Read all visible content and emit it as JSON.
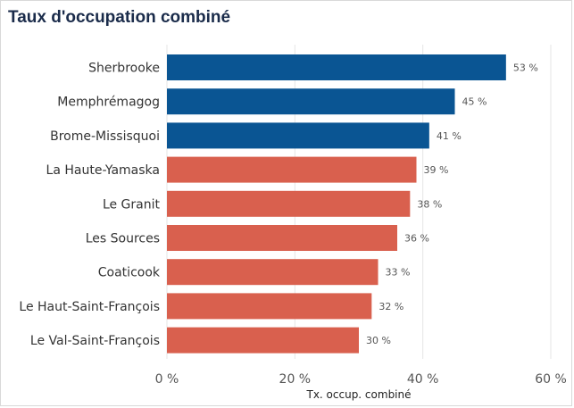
{
  "chart_data": {
    "type": "bar",
    "orientation": "horizontal",
    "title": "Taux d'occupation combiné",
    "xlabel": "Tx. occup. combiné",
    "ylabel": "",
    "xlim": [
      0,
      60
    ],
    "x_ticks": [
      0,
      20,
      40,
      60
    ],
    "x_tick_labels": [
      "0 %",
      "20 %",
      "40 %",
      "60 %"
    ],
    "grid": "vertical",
    "legend": "none",
    "categories": [
      "Sherbrooke",
      "Memphrémagog",
      "Brome-Missisquoi",
      "La Haute-Yamaska",
      "Le Granit",
      "Les Sources",
      "Coaticook",
      "Le Haut-Saint-François",
      "Le Val-Saint-François"
    ],
    "values": [
      53,
      45,
      41,
      39,
      38,
      36,
      33,
      32,
      30
    ],
    "value_labels": [
      "53 %",
      "45 %",
      "41 %",
      "39 %",
      "38 %",
      "36 %",
      "33 %",
      "32 %",
      "30 %"
    ],
    "colors": [
      "#0a5593",
      "#0a5593",
      "#0a5593",
      "#d9604e",
      "#d9604e",
      "#d9604e",
      "#d9604e",
      "#d9604e",
      "#d9604e"
    ],
    "gridline_color": "#e6e6e6"
  }
}
